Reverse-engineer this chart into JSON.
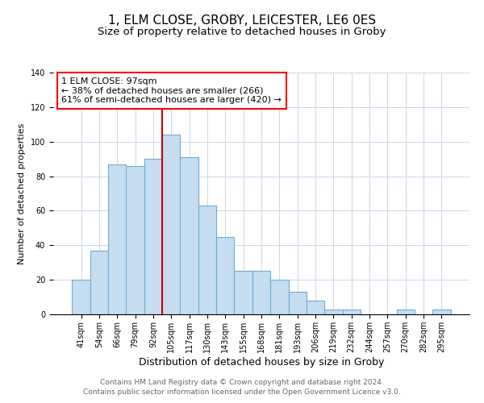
{
  "title": "1, ELM CLOSE, GROBY, LEICESTER, LE6 0ES",
  "subtitle": "Size of property relative to detached houses in Groby",
  "xlabel": "Distribution of detached houses by size in Groby",
  "ylabel": "Number of detached properties",
  "categories": [
    "41sqm",
    "54sqm",
    "66sqm",
    "79sqm",
    "92sqm",
    "105sqm",
    "117sqm",
    "130sqm",
    "143sqm",
    "155sqm",
    "168sqm",
    "181sqm",
    "193sqm",
    "206sqm",
    "219sqm",
    "232sqm",
    "244sqm",
    "257sqm",
    "270sqm",
    "282sqm",
    "295sqm"
  ],
  "values": [
    20,
    37,
    87,
    86,
    90,
    104,
    91,
    63,
    45,
    25,
    25,
    20,
    13,
    8,
    3,
    3,
    0,
    0,
    3,
    0,
    3
  ],
  "bar_color": "#c6dcef",
  "bar_edge_color": "#6baed6",
  "highlight_line_color": "#cc0000",
  "annotation_line1": "1 ELM CLOSE: 97sqm",
  "annotation_line2": "← 38% of detached houses are smaller (266)",
  "annotation_line3": "61% of semi-detached houses are larger (420) →",
  "ylim": [
    0,
    140
  ],
  "yticks": [
    0,
    20,
    40,
    60,
    80,
    100,
    120,
    140
  ],
  "footer1": "Contains HM Land Registry data © Crown copyright and database right 2024.",
  "footer2": "Contains public sector information licensed under the Open Government Licence v3.0.",
  "title_fontsize": 11,
  "subtitle_fontsize": 9.5,
  "xlabel_fontsize": 9,
  "ylabel_fontsize": 8,
  "tick_fontsize": 7,
  "annotation_fontsize": 8,
  "footer_fontsize": 6.5,
  "red_line_index": 4.5
}
